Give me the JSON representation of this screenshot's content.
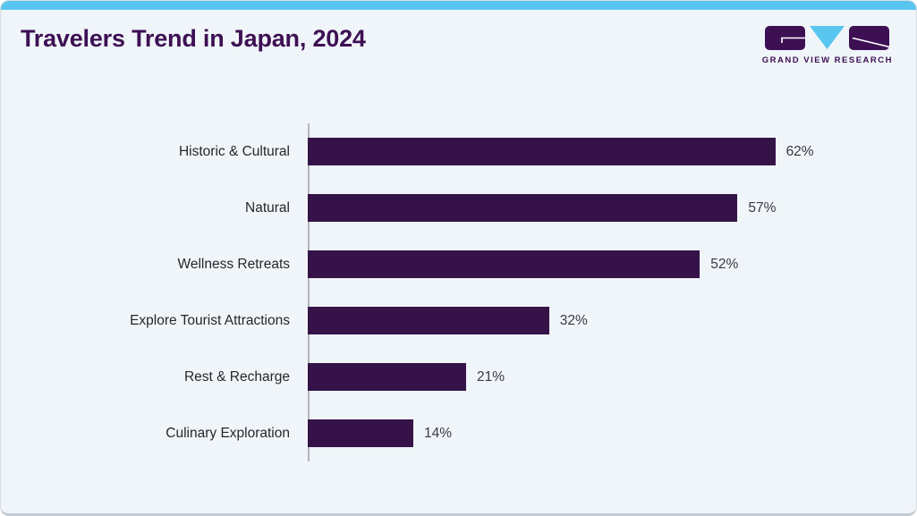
{
  "page": {
    "title": "Travelers Trend in Japan, 2024",
    "logo": {
      "name": "Grand View Research",
      "text": "GRAND VIEW RESEARCH"
    },
    "colors": {
      "accent_purple": "#3d1054",
      "bar_purple": "#351349",
      "accent_cyan": "#58c6ef",
      "card_background": "#f0f5f9",
      "axis_line": "#b2b6bc",
      "label_text": "#26262c",
      "value_text": "#3a3a42"
    }
  },
  "chart_data": {
    "type": "bar",
    "orientation": "horizontal",
    "title": "Travelers Trend in Japan, 2024",
    "categories": [
      "Historic & Cultural",
      "Natural",
      "Wellness Retreats",
      "Explore Tourist Attractions",
      "Rest & Recharge",
      "Culinary Exploration"
    ],
    "values": [
      62,
      57,
      52,
      32,
      21,
      14
    ],
    "value_labels": [
      "62%",
      "57%",
      "52%",
      "32%",
      "21%",
      "14%"
    ],
    "unit": "%",
    "xlim": [
      0,
      70
    ],
    "grid": false,
    "legend": false,
    "bar_color": "#351349"
  }
}
